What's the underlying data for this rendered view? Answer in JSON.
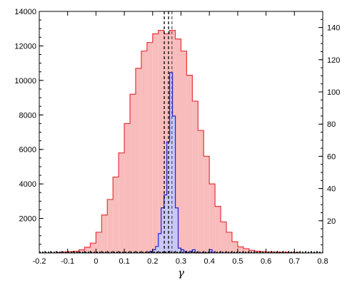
{
  "chart_data": {
    "type": "bar",
    "xlabel": "γ",
    "xlim": [
      -0.2,
      0.8
    ],
    "x_ticks": [
      -0.2,
      -0.1,
      0,
      0.1,
      0.2,
      0.3,
      0.4,
      0.5,
      0.6,
      0.7,
      0.8
    ],
    "x_tick_labels": [
      "-0.2",
      "-0.1",
      "0",
      "0.1",
      "0.2",
      "0.3",
      "0.4",
      "0.5",
      "0.6",
      "0.7",
      "0.8"
    ],
    "ylim_left": [
      0,
      14000
    ],
    "y_ticks_left": [
      2000,
      4000,
      6000,
      8000,
      10000,
      12000,
      14000
    ],
    "ylim_right": [
      0,
      150
    ],
    "y_ticks_right": [
      20,
      40,
      60,
      80,
      100,
      120,
      140
    ],
    "series": [
      {
        "axis": "left",
        "color": "#e8343a",
        "fill": "#f9bcbc",
        "bin_edges": [
          -0.14,
          -0.12,
          -0.1,
          -0.08,
          -0.06,
          -0.04,
          -0.02,
          0.0,
          0.02,
          0.04,
          0.06,
          0.08,
          0.1,
          0.12,
          0.14,
          0.16,
          0.18,
          0.2,
          0.22,
          0.24,
          0.26,
          0.28,
          0.3,
          0.32,
          0.34,
          0.36,
          0.38,
          0.4,
          0.42,
          0.44,
          0.46,
          0.48,
          0.5,
          0.52,
          0.54,
          0.56,
          0.58,
          0.6,
          0.62,
          0.64,
          0.66,
          0.68,
          0.7,
          0.72
        ],
        "values": [
          30,
          60,
          80,
          100,
          180,
          330,
          570,
          1200,
          2200,
          3100,
          4400,
          5800,
          7500,
          9200,
          10700,
          11700,
          12200,
          12700,
          12900,
          12700,
          12900,
          12400,
          11700,
          10300,
          8800,
          7100,
          5600,
          4000,
          2700,
          1800,
          1200,
          650,
          350,
          250,
          150,
          100,
          80,
          60,
          50,
          40,
          40,
          30,
          30
        ]
      },
      {
        "axis": "right",
        "color": "#2020e0",
        "fill": "#c8c8f8",
        "bin_edges": [
          0.19,
          0.2,
          0.21,
          0.22,
          0.23,
          0.24,
          0.25,
          0.26,
          0.27,
          0.28,
          0.29,
          0.3,
          0.31,
          0.32,
          0.33,
          0.34,
          0.35,
          0.36,
          0.37,
          0.38,
          0.39,
          0.4,
          0.41
        ],
        "values": [
          1,
          2,
          4,
          12,
          28,
          36,
          69,
          112,
          85,
          28,
          3,
          2,
          1,
          0,
          1,
          2,
          0,
          0,
          0,
          0,
          0,
          2
        ]
      }
    ],
    "vlines": [
      {
        "x": 0.241,
        "style": "dashed",
        "color": "#000000"
      },
      {
        "x": 0.256,
        "style": "dashed",
        "color": "#000000"
      },
      {
        "x": 0.268,
        "style": "dashed",
        "color": "#555555"
      }
    ]
  }
}
